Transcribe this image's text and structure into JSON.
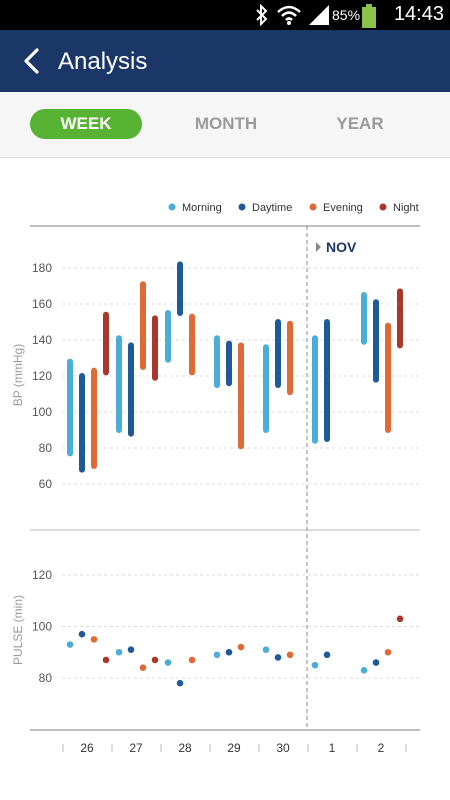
{
  "status_bar": {
    "battery": "85%",
    "time": "14:43",
    "icons": [
      "bluetooth-icon",
      "wifi-icon",
      "signal-icon",
      "battery-icon"
    ]
  },
  "header": {
    "title": "Analysis",
    "back_icon": "chevron-left-icon"
  },
  "tabs": [
    {
      "label": "WEEK",
      "active": true
    },
    {
      "label": "MONTH",
      "active": false
    },
    {
      "label": "YEAR",
      "active": false
    }
  ],
  "chart_data": {
    "type": "range-bar-and-scatter",
    "legend": [
      {
        "name": "Morning",
        "color": "#4aaed6"
      },
      {
        "name": "Daytime",
        "color": "#1f5a98"
      },
      {
        "name": "Evening",
        "color": "#e06a35"
      },
      {
        "name": "Night",
        "color": "#a8382b"
      }
    ],
    "month_marker": "NOV",
    "x_labels": [
      "26",
      "27",
      "28",
      "29",
      "30",
      "1",
      "2"
    ],
    "bp": {
      "ylabel": "BP  (mmHg)",
      "yticks": [
        60,
        80,
        100,
        120,
        140,
        160,
        180
      ],
      "ylim": [
        52,
        188
      ],
      "days": [
        [
          [
            77,
            128
          ],
          [
            68,
            120
          ],
          [
            70,
            123
          ],
          [
            122,
            154
          ]
        ],
        [
          [
            90,
            141
          ],
          [
            88,
            137
          ],
          [
            125,
            171
          ],
          [
            119,
            152
          ]
        ],
        [
          [
            129,
            155
          ],
          [
            155,
            182
          ],
          [
            122,
            153
          ],
          null
        ],
        [
          [
            115,
            141
          ],
          [
            116,
            138
          ],
          [
            81,
            137
          ],
          null
        ],
        [
          [
            90,
            136
          ],
          [
            115,
            150
          ],
          [
            111,
            149
          ],
          null
        ],
        [
          [
            84,
            141
          ],
          [
            85,
            150
          ],
          null,
          null
        ],
        [
          [
            139,
            165
          ],
          [
            118,
            161
          ],
          [
            90,
            148
          ],
          [
            137,
            167
          ]
        ]
      ]
    },
    "pulse": {
      "ylabel": "PULSE  (min)",
      "yticks": [
        80,
        100,
        120
      ],
      "ylim": [
        62,
        132
      ],
      "days": [
        [
          93,
          97,
          95,
          87
        ],
        [
          90,
          91,
          84,
          87
        ],
        [
          86,
          78,
          87,
          null
        ],
        [
          89,
          90,
          92,
          null
        ],
        [
          91,
          88,
          89,
          null
        ],
        [
          85,
          89,
          null,
          null
        ],
        [
          83,
          86,
          90,
          103
        ]
      ]
    }
  }
}
